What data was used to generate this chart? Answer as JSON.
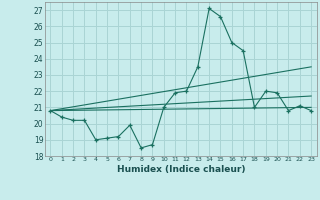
{
  "xlabel": "Humidex (Indice chaleur)",
  "xlim": [
    -0.5,
    23.5
  ],
  "ylim": [
    18,
    27.5
  ],
  "yticks": [
    18,
    19,
    20,
    21,
    22,
    23,
    24,
    25,
    26,
    27
  ],
  "xticks": [
    0,
    1,
    2,
    3,
    4,
    5,
    6,
    7,
    8,
    9,
    10,
    11,
    12,
    13,
    14,
    15,
    16,
    17,
    18,
    19,
    20,
    21,
    22,
    23
  ],
  "bg_color": "#c8ecec",
  "grid_color": "#aad4d4",
  "line_color": "#1a7060",
  "line1_x": [
    0,
    1,
    2,
    3,
    4,
    5,
    6,
    7,
    8,
    9,
    10,
    11,
    12,
    13,
    14,
    15,
    16,
    17,
    18,
    19,
    20,
    21,
    22,
    23
  ],
  "line1_y": [
    20.8,
    20.4,
    20.2,
    20.2,
    19.0,
    19.1,
    19.2,
    19.9,
    18.5,
    18.7,
    21.0,
    21.9,
    22.0,
    23.5,
    27.1,
    26.6,
    25.0,
    24.5,
    21.0,
    22.0,
    21.9,
    20.8,
    21.1,
    20.8
  ],
  "line2_x": [
    0,
    23
  ],
  "line2_y": [
    20.8,
    21.0
  ],
  "line3_x": [
    0,
    23
  ],
  "line3_y": [
    20.8,
    23.5
  ],
  "line4_x": [
    0,
    23
  ],
  "line4_y": [
    20.8,
    21.7
  ]
}
